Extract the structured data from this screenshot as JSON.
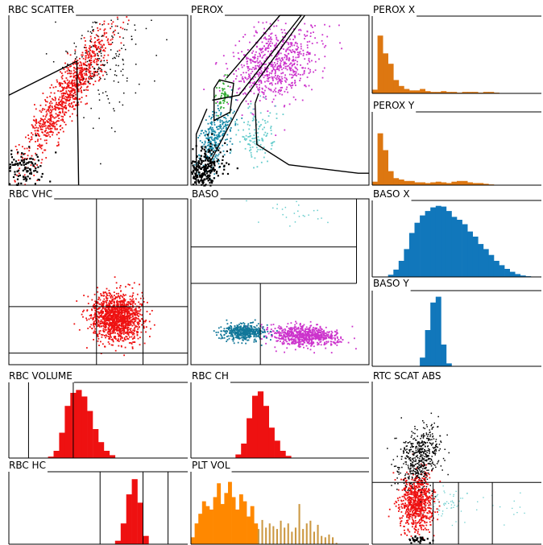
{
  "colors": {
    "rbc_red": "#ee1111",
    "perox_purple": "#cc33cc",
    "perox_teal": "#1a8aa8",
    "perox_cyan": "#66cccc",
    "perox_green": "#33aa33",
    "perox_orange": "#dd7711",
    "baso_blue": "#1177bb",
    "baso_purple": "#cc33cc",
    "baso_teal": "#117799",
    "plt_orange": "#ff8800",
    "plt_tan": "#cc9944",
    "dark": "#000000"
  },
  "chart_data": [
    {
      "id": "rbc-scatter",
      "type": "scatter",
      "title": "RBC SCATTER",
      "point_color": "rbc_red",
      "clusters": [
        {
          "color": "rbc_red",
          "count": 900,
          "center": [
            0.33,
            0.45
          ],
          "spread": [
            0.045,
            0.22
          ],
          "angle": 0.55
        },
        {
          "color": "dark",
          "count": 180,
          "center": [
            0.52,
            0.24
          ],
          "spread": [
            0.12,
            0.18
          ],
          "angle": 0.2,
          "size": 1.5
        },
        {
          "color": "dark",
          "count": 120,
          "center": [
            0.08,
            0.9
          ],
          "spread": [
            0.06,
            0.06
          ],
          "angle": 0,
          "size": 2.2
        }
      ],
      "gates": [
        [
          [
            0.0,
            0.47
          ],
          [
            0.38,
            0.27
          ],
          [
            0.39,
            1.0
          ]
        ]
      ]
    },
    {
      "id": "perox",
      "type": "scatter",
      "title": "PEROX",
      "clusters": [
        {
          "color": "perox_purple",
          "count": 700,
          "center": [
            0.47,
            0.28
          ],
          "spread": [
            0.13,
            0.1
          ],
          "angle": -0.7
        },
        {
          "color": "perox_teal",
          "count": 300,
          "center": [
            0.13,
            0.72
          ],
          "spread": [
            0.04,
            0.1
          ],
          "angle": 0.3
        },
        {
          "color": "perox_cyan",
          "count": 120,
          "center": [
            0.36,
            0.7
          ],
          "spread": [
            0.06,
            0.09
          ],
          "angle": 0.2
        },
        {
          "color": "perox_green",
          "count": 50,
          "center": [
            0.17,
            0.47
          ],
          "spread": [
            0.02,
            0.05
          ],
          "angle": 0
        },
        {
          "color": "dark",
          "count": 250,
          "center": [
            0.07,
            0.9
          ],
          "spread": [
            0.05,
            0.07
          ],
          "angle": 0.5,
          "size": 2.2
        }
      ],
      "gates": [
        [
          [
            0.2,
            0.37
          ],
          [
            0.5,
            0.0
          ],
          [
            0.62,
            0.0
          ],
          [
            0.27,
            0.47
          ],
          [
            0.12,
            0.5
          ]
        ],
        [
          [
            0.64,
            0.0
          ],
          [
            0.28,
            0.52
          ],
          [
            0.05,
            0.98
          ]
        ],
        [
          [
            0.13,
            0.43
          ],
          [
            0.16,
            0.38
          ],
          [
            0.24,
            0.4
          ],
          [
            0.22,
            0.57
          ],
          [
            0.13,
            0.62
          ],
          [
            0.13,
            0.43
          ]
        ],
        [
          [
            0.09,
            0.55
          ],
          [
            0.03,
            0.7
          ],
          [
            0.03,
            1.0
          ]
        ],
        [
          [
            0.36,
            0.52
          ],
          [
            0.37,
            0.76
          ],
          [
            0.55,
            0.88
          ],
          [
            0.94,
            0.93
          ],
          [
            1.0,
            0.93
          ]
        ],
        [
          [
            0.36,
            0.52
          ],
          [
            0.38,
            0.46
          ]
        ]
      ]
    },
    {
      "id": "perox-x",
      "type": "histogram",
      "title": "PEROX X",
      "color": "perox_orange",
      "values": [
        0.05,
        0.78,
        0.54,
        0.4,
        0.18,
        0.1,
        0.06,
        0.04,
        0.04,
        0.06,
        0.03,
        0.02,
        0.02,
        0.03,
        0.02,
        0.02,
        0.01,
        0.02,
        0.02,
        0.02,
        0.01,
        0.02,
        0.02,
        0.01,
        0.0,
        0.0,
        0.0,
        0.0,
        0.0,
        0.0,
        0.0,
        0.0
      ]
    },
    {
      "id": "perox-y",
      "type": "histogram",
      "title": "PEROX Y",
      "color": "perox_orange",
      "values": [
        0.05,
        0.74,
        0.5,
        0.2,
        0.1,
        0.08,
        0.06,
        0.06,
        0.04,
        0.04,
        0.03,
        0.04,
        0.05,
        0.04,
        0.03,
        0.05,
        0.06,
        0.06,
        0.04,
        0.03,
        0.03,
        0.02,
        0.01,
        0.0,
        0.0,
        0.0,
        0.0,
        0.0,
        0.0,
        0.0,
        0.0,
        0.0
      ]
    },
    {
      "id": "rbc-vhc",
      "type": "scatter",
      "title": "RBC VHC",
      "clusters": [
        {
          "color": "rbc_red",
          "count": 1300,
          "center": [
            0.6,
            0.71
          ],
          "spread": [
            0.07,
            0.07
          ],
          "angle": 0
        }
      ],
      "vlines": [
        0.49,
        0.75
      ],
      "hlines": [
        0.65,
        0.93
      ]
    },
    {
      "id": "baso",
      "type": "scatter",
      "title": "BASO",
      "clusters": [
        {
          "color": "baso_purple",
          "count": 700,
          "center": [
            0.63,
            0.82
          ],
          "spread": [
            0.1,
            0.03
          ],
          "angle": 0.05
        },
        {
          "color": "baso_teal",
          "count": 450,
          "center": [
            0.3,
            0.8
          ],
          "spread": [
            0.06,
            0.025
          ],
          "angle": 0
        },
        {
          "color": "perox_cyan",
          "count": 25,
          "center": [
            0.55,
            0.1
          ],
          "spread": [
            0.12,
            0.05
          ],
          "angle": 0,
          "size": 1.5
        }
      ],
      "vlines_lower": [
        0.39
      ],
      "hlines": [
        0.29,
        0.51
      ],
      "hsegments": [
        [
          0.0,
          0.93,
          0.29
        ],
        [
          0.0,
          0.93,
          0.51
        ]
      ],
      "vsegments": [
        [
          0.93,
          0.0,
          0.51
        ]
      ]
    },
    {
      "id": "baso-x",
      "type": "histogram",
      "title": "BASO X",
      "color": "baso_blue",
      "values": [
        0.0,
        0.0,
        0.0,
        0.03,
        0.1,
        0.22,
        0.38,
        0.6,
        0.74,
        0.84,
        0.9,
        0.95,
        0.97,
        0.96,
        0.9,
        0.82,
        0.78,
        0.72,
        0.62,
        0.55,
        0.45,
        0.38,
        0.3,
        0.22,
        0.16,
        0.11,
        0.07,
        0.04,
        0.02,
        0.01,
        0.0,
        0.0
      ]
    },
    {
      "id": "baso-y",
      "type": "histogram",
      "title": "BASO Y",
      "color": "baso_blue",
      "values": [
        0.0,
        0.0,
        0.0,
        0.0,
        0.0,
        0.0,
        0.0,
        0.0,
        0.0,
        0.12,
        0.5,
        0.88,
        0.96,
        0.3,
        0.04,
        0.0,
        0.0,
        0.0,
        0.0,
        0.0,
        0.0,
        0.0,
        0.0,
        0.0,
        0.0,
        0.0,
        0.0,
        0.0,
        0.0,
        0.0,
        0.0,
        0.0
      ]
    },
    {
      "id": "rbc-volume",
      "type": "histogram",
      "title": "RBC VOLUME",
      "color": "rbc_red",
      "values": [
        0.0,
        0.0,
        0.0,
        0.0,
        0.0,
        0.0,
        0.0,
        0.02,
        0.1,
        0.35,
        0.72,
        0.9,
        0.94,
        0.85,
        0.65,
        0.4,
        0.22,
        0.1,
        0.04,
        0.0,
        0.0,
        0.0,
        0.0,
        0.0,
        0.0,
        0.0,
        0.0,
        0.0,
        0.0,
        0.0,
        0.0,
        0.0
      ],
      "vlines": [
        0.11,
        0.36
      ]
    },
    {
      "id": "rbc-ch",
      "type": "histogram",
      "title": "RBC CH",
      "color": "rbc_red",
      "values": [
        0.0,
        0.0,
        0.0,
        0.0,
        0.0,
        0.0,
        0.0,
        0.0,
        0.05,
        0.2,
        0.55,
        0.86,
        0.92,
        0.72,
        0.42,
        0.24,
        0.1,
        0.03,
        0.0,
        0.0,
        0.0,
        0.0,
        0.0,
        0.0,
        0.0,
        0.0,
        0.0,
        0.0,
        0.0,
        0.0,
        0.0,
        0.0
      ]
    },
    {
      "id": "rbc-hc",
      "type": "histogram",
      "title": "RBC HC",
      "color": "rbc_red",
      "values": [
        0.0,
        0.0,
        0.0,
        0.0,
        0.0,
        0.0,
        0.0,
        0.0,
        0.0,
        0.0,
        0.0,
        0.0,
        0.0,
        0.0,
        0.0,
        0.0,
        0.0,
        0.0,
        0.0,
        0.05,
        0.3,
        0.72,
        0.94,
        0.6,
        0.12,
        0.0,
        0.0,
        0.0,
        0.0,
        0.0,
        0.0,
        0.0
      ],
      "vlines": [
        0.51,
        0.75,
        0.89
      ]
    },
    {
      "id": "plt-vol",
      "type": "histogram",
      "title": "PLT VOL",
      "color": "plt_orange",
      "values": [
        0.1,
        0.3,
        0.44,
        0.62,
        0.55,
        0.5,
        0.68,
        0.88,
        0.58,
        0.74,
        0.9,
        0.68,
        0.5,
        0.72,
        0.62,
        0.4,
        0.55,
        0.3,
        0.22,
        0.35,
        0.24,
        0.3,
        0.26,
        0.22,
        0.34,
        0.24,
        0.3,
        0.18,
        0.24,
        0.58,
        0.22,
        0.3,
        0.34,
        0.18,
        0.28,
        0.12,
        0.1,
        0.14,
        0.1,
        0.02,
        0.0,
        0.0,
        0.0,
        0.0,
        0.0,
        0.0,
        0.0,
        0.0
      ],
      "tan_from": 18
    },
    {
      "id": "rtc-scat-abs",
      "type": "scatter",
      "title": "RTC SCAT ABS",
      "clusters": [
        {
          "color": "rbc_red",
          "count": 700,
          "center": [
            0.26,
            0.74
          ],
          "spread": [
            0.05,
            0.09
          ],
          "angle": 0
        },
        {
          "color": "dark",
          "count": 500,
          "center": [
            0.28,
            0.46
          ],
          "spread": [
            0.06,
            0.1
          ],
          "angle": 0.3,
          "size": 1.5
        },
        {
          "color": "perox_cyan",
          "count": 60,
          "center": [
            0.45,
            0.74
          ],
          "spread": [
            0.08,
            0.05
          ],
          "angle": 0,
          "size": 1.3
        },
        {
          "color": "perox_cyan",
          "count": 12,
          "center": [
            0.82,
            0.76
          ],
          "spread": [
            0.08,
            0.05
          ],
          "angle": 0,
          "size": 1.3
        },
        {
          "color": "dark",
          "count": 30,
          "center": [
            0.27,
            0.97
          ],
          "spread": [
            0.03,
            0.01
          ],
          "angle": 0,
          "size": 2.2
        }
      ],
      "hsegments": [
        [
          0.0,
          1.0,
          0.62
        ]
      ],
      "vsegments": [
        [
          0.36,
          0.62,
          1.0
        ],
        [
          0.51,
          0.62,
          1.0
        ],
        [
          0.71,
          0.62,
          1.0
        ]
      ]
    }
  ]
}
